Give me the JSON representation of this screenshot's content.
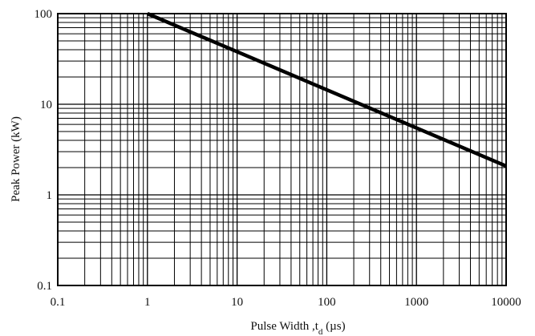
{
  "chart_data": {
    "type": "line",
    "xlabel": "Pulse Width ,t",
    "xlabel_sub": "d",
    "xlabel_unit": " (µs)",
    "ylabel": "Peak Power  (kW)",
    "x_scale": "log",
    "y_scale": "log",
    "xlim": [
      0.1,
      10000
    ],
    "ylim": [
      0.1,
      100
    ],
    "grid": true,
    "x_ticks": [
      0.1,
      1,
      10,
      100,
      1000,
      10000
    ],
    "x_tick_labels": [
      "0.1",
      "1",
      "10",
      "100",
      "1000",
      "10000"
    ],
    "y_ticks": [
      0.1,
      1,
      10,
      100
    ],
    "y_tick_labels": [
      "0.1",
      "1",
      "10",
      "100"
    ],
    "series": [
      {
        "x": [
          1,
          10000
        ],
        "y": [
          100,
          2.08
        ]
      }
    ]
  }
}
